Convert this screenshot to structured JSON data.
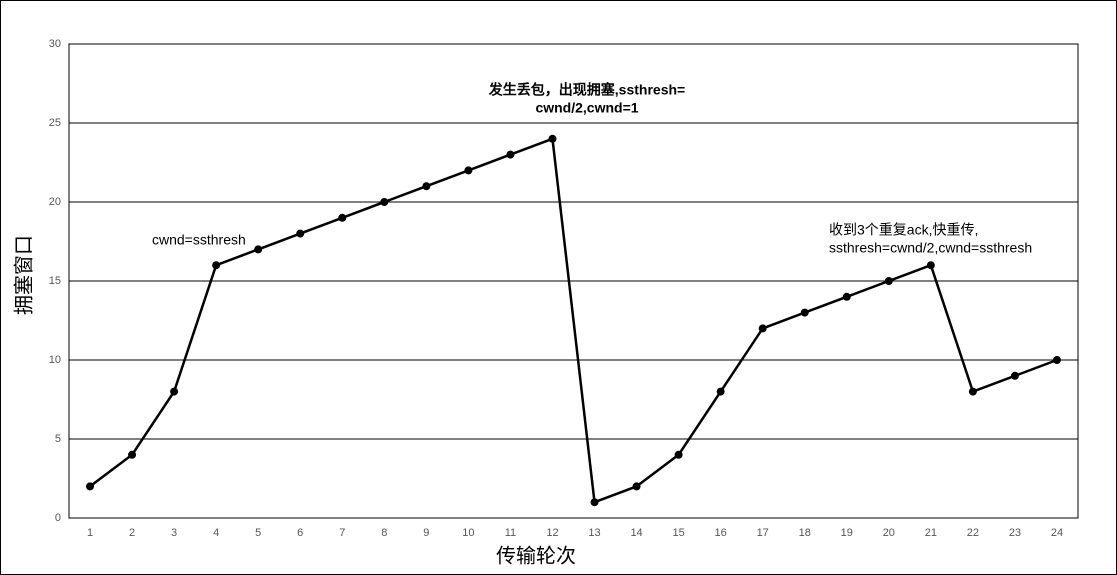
{
  "chart_data": {
    "type": "line",
    "x_label": "传输轮次",
    "y_label": "拥塞窗口",
    "categories": [
      "1",
      "2",
      "3",
      "4",
      "5",
      "6",
      "7",
      "8",
      "9",
      "10",
      "11",
      "12",
      "13",
      "14",
      "15",
      "16",
      "17",
      "18",
      "19",
      "20",
      "21",
      "22",
      "23",
      "24"
    ],
    "series": [
      {
        "color": "#000000",
        "values": [
          2,
          4,
          8,
          16,
          17,
          18,
          19,
          20,
          21,
          22,
          23,
          24,
          1,
          2,
          4,
          8,
          12,
          13,
          14,
          15,
          16,
          8,
          9,
          10
        ]
      }
    ],
    "ylim": [
      0,
      30
    ],
    "yticks": [
      0,
      5,
      10,
      15,
      20,
      25,
      30
    ],
    "grid": true,
    "annotations": [
      {
        "lines": [
          "发生丢包，出现拥塞,ssthresh=",
          "cwnd/2,cwnd=1"
        ]
      },
      {
        "lines": [
          "cwnd=ssthresh"
        ]
      },
      {
        "lines": [
          "收到3个重复ack,快重传,",
          "ssthresh=cwnd/2,cwnd=ssthresh"
        ]
      }
    ]
  }
}
